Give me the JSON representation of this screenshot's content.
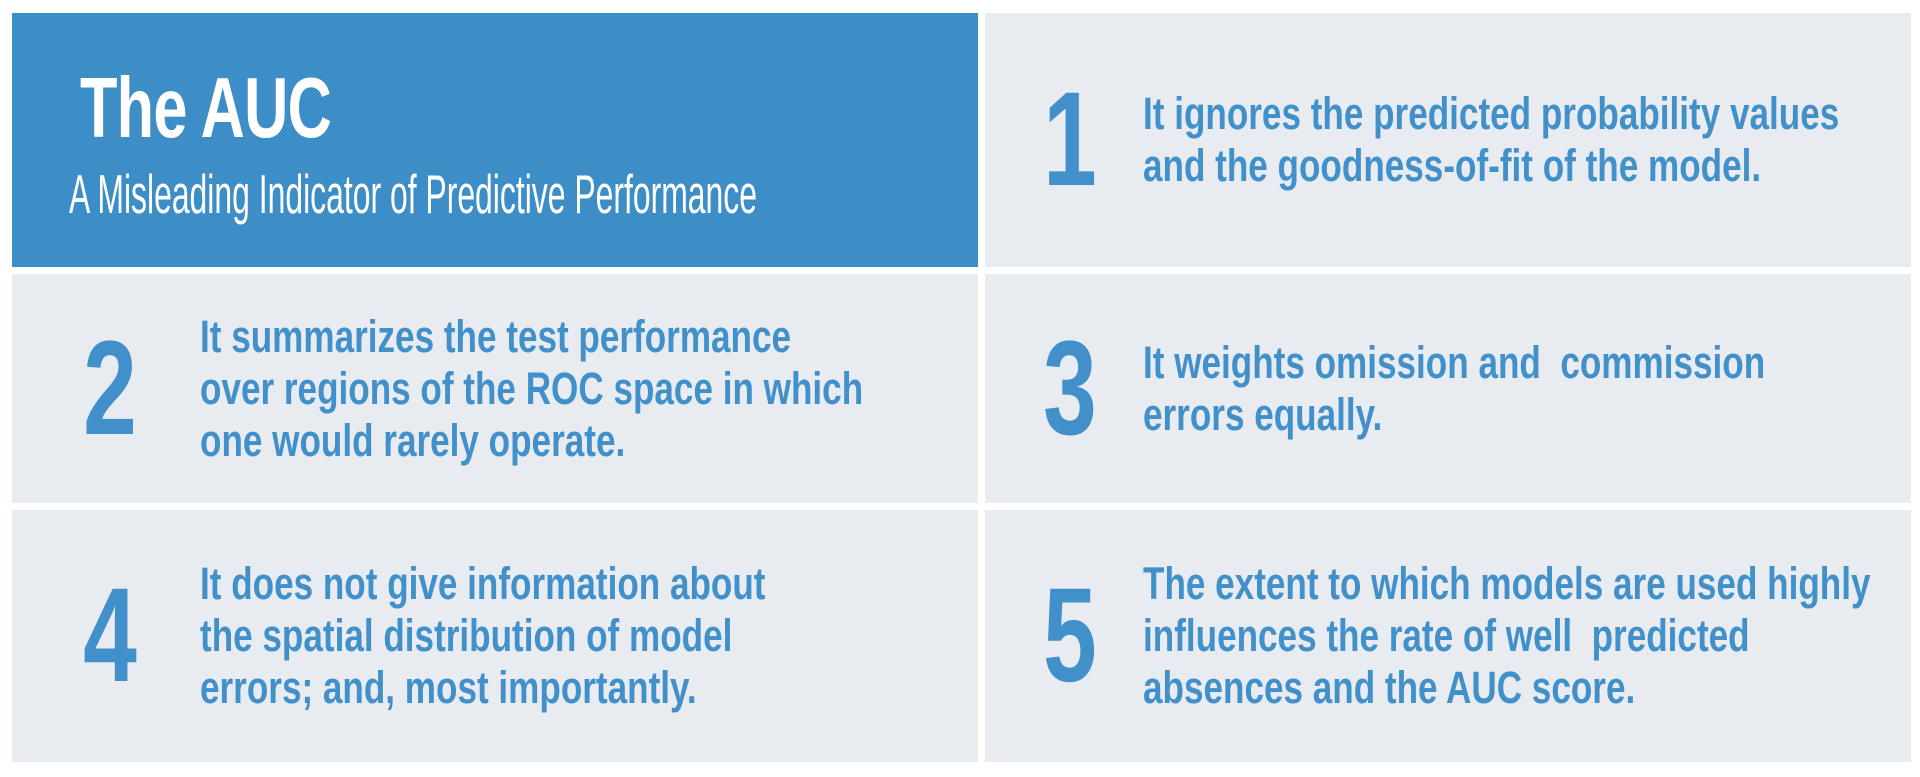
{
  "colors": {
    "accent_blue": "#3d8dc6",
    "text_blue": "#4190ca",
    "card_bg": "#e8ecf1",
    "page_bg": "#ffffff",
    "title_white": "#ffffff"
  },
  "header": {
    "title": "The AUC",
    "subtitle": "A Misleading Indicator of Predictive Performance"
  },
  "points": [
    {
      "number": "1",
      "lines": [
        "It ignores the predicted probability values",
        "and the goodness-of-fit of the model."
      ]
    },
    {
      "number": "2",
      "lines": [
        "It summarizes the test performance",
        "over regions of the ROC space in which",
        "one would rarely operate."
      ]
    },
    {
      "number": "3",
      "lines": [
        "It weights omission and  commission",
        "errors equally."
      ]
    },
    {
      "number": "4",
      "lines": [
        "It does not give information about",
        "the spatial distribution of model",
        "errors; and, most importantly."
      ]
    },
    {
      "number": "5",
      "lines": [
        "The extent to which models are used highly",
        "influences the rate of well  predicted",
        "absences and the AUC score."
      ]
    }
  ]
}
